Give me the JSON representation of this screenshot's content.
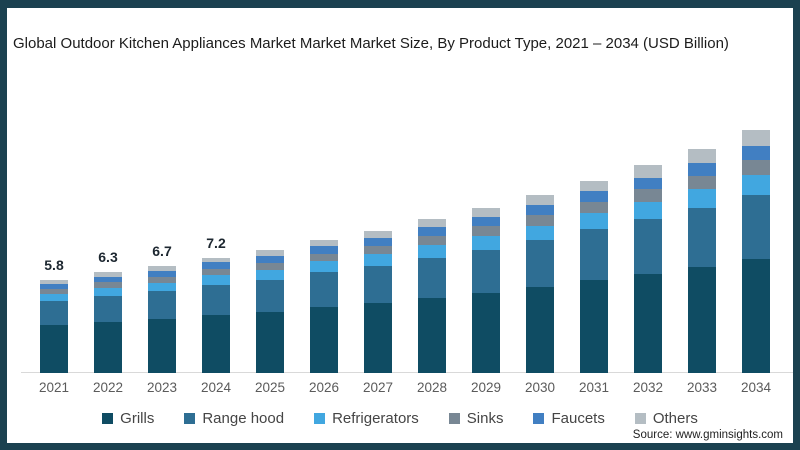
{
  "frame": {
    "border_color": "#1b4150",
    "canvas_color": "#ffffff"
  },
  "source": "Source: www.gminsights.com",
  "chart_data": {
    "type": "bar",
    "stacked": true,
    "title": "Global Outdoor Kitchen Appliances Market Market Market Size, By Product Type, 2021 – 2034 (USD Billion)",
    "unit": "USD Billion",
    "categories": [
      "2021",
      "2022",
      "2023",
      "2024",
      "2025",
      "2026",
      "2027",
      "2028",
      "2029",
      "2030",
      "2031",
      "2032",
      "2033",
      "2034"
    ],
    "series": [
      {
        "name": "Grills",
        "color": "#0f4c63",
        "values": [
          3.0,
          3.2,
          3.4,
          3.6,
          3.8,
          4.1,
          4.4,
          4.7,
          5.0,
          5.4,
          5.8,
          6.2,
          6.6,
          7.1
        ]
      },
      {
        "name": "Range hood",
        "color": "#2e6e93",
        "values": [
          1.5,
          1.6,
          1.7,
          1.9,
          2.0,
          2.2,
          2.3,
          2.5,
          2.7,
          2.9,
          3.2,
          3.4,
          3.7,
          4.0
        ]
      },
      {
        "name": "Refrigerators",
        "color": "#41a7e0",
        "values": [
          0.45,
          0.5,
          0.55,
          0.6,
          0.63,
          0.68,
          0.73,
          0.8,
          0.85,
          0.92,
          1.0,
          1.1,
          1.2,
          1.3
        ]
      },
      {
        "name": "Sinks",
        "color": "#788794",
        "values": [
          0.33,
          0.36,
          0.38,
          0.42,
          0.45,
          0.49,
          0.52,
          0.57,
          0.61,
          0.66,
          0.72,
          0.78,
          0.84,
          0.92
        ]
      },
      {
        "name": "Faucets",
        "color": "#417fc2",
        "values": [
          0.31,
          0.34,
          0.36,
          0.39,
          0.42,
          0.45,
          0.49,
          0.53,
          0.57,
          0.61,
          0.66,
          0.72,
          0.77,
          0.84
        ]
      },
      {
        "name": "Others",
        "color": "#b4bdc3",
        "values": [
          0.21,
          0.3,
          0.31,
          0.29,
          0.4,
          0.38,
          0.46,
          0.5,
          0.57,
          0.61,
          0.62,
          0.8,
          0.89,
          1.04
        ]
      }
    ],
    "totals": [
      5.8,
      6.3,
      6.7,
      7.2,
      7.7,
      8.3,
      8.9,
      9.6,
      10.3,
      11.1,
      12.0,
      13.0,
      14.0,
      15.2
    ],
    "total_labels": [
      "5.8",
      "6.3",
      "6.7",
      "7.2",
      "",
      "",
      "",
      "",
      "",
      "",
      "",
      "",
      "",
      ""
    ],
    "xlabel": "",
    "ylabel": "",
    "ylim": [
      0,
      16
    ],
    "grid": false,
    "legend_position": "bottom",
    "axis_line_color": "#d9d9d9"
  }
}
